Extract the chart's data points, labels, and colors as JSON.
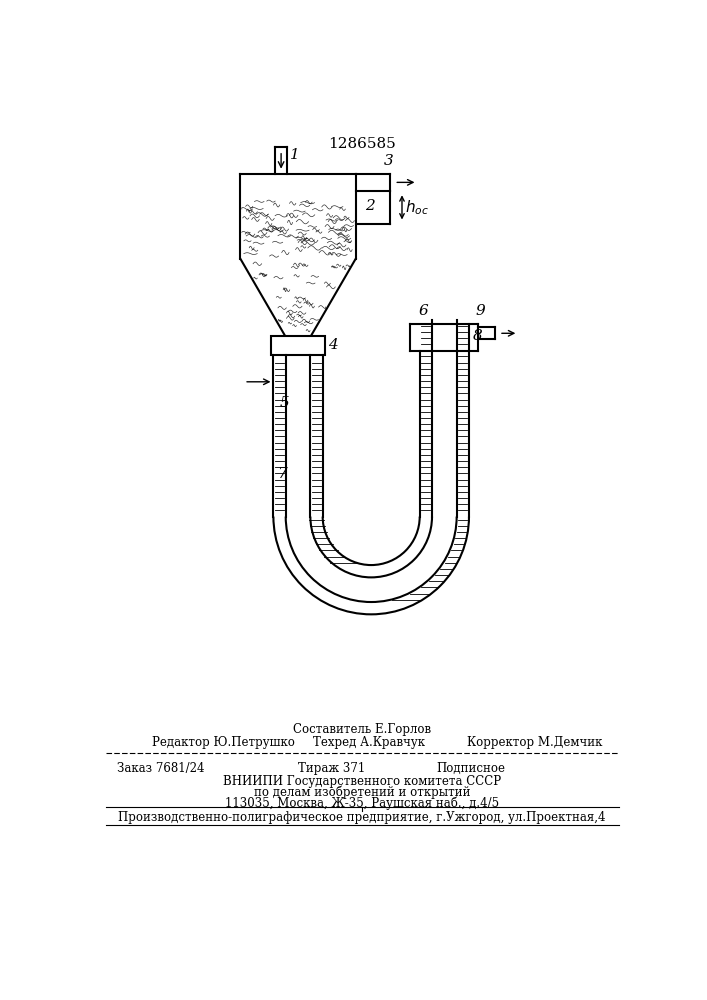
{
  "patent_number": "1286585",
  "bg_color": "#ffffff",
  "line_color": "#000000",
  "footer_sestavitel": "Составитель Е.Горлов",
  "footer_redaktor": "Редактор Ю.Петрушко",
  "footer_tehred": "Техред А.Кравчук",
  "footer_korrektor": "Корректор М.Демчик",
  "footer_zakaz": "Заказ 7681/24",
  "footer_tirazh": "Тираж 371",
  "footer_podpisnoe": "Подписное",
  "footer_vniipи": "ВНИИПИ Государственного комитета СССР",
  "footer_po_delam": "по делам изобретений и открытий",
  "footer_address": "113035, Москва, Ж-35, Раушская наб., д.4/5",
  "footer_predpr": "Производственно-полиграфическое предприятие, г.Ужгород, ул.Проектная,4"
}
